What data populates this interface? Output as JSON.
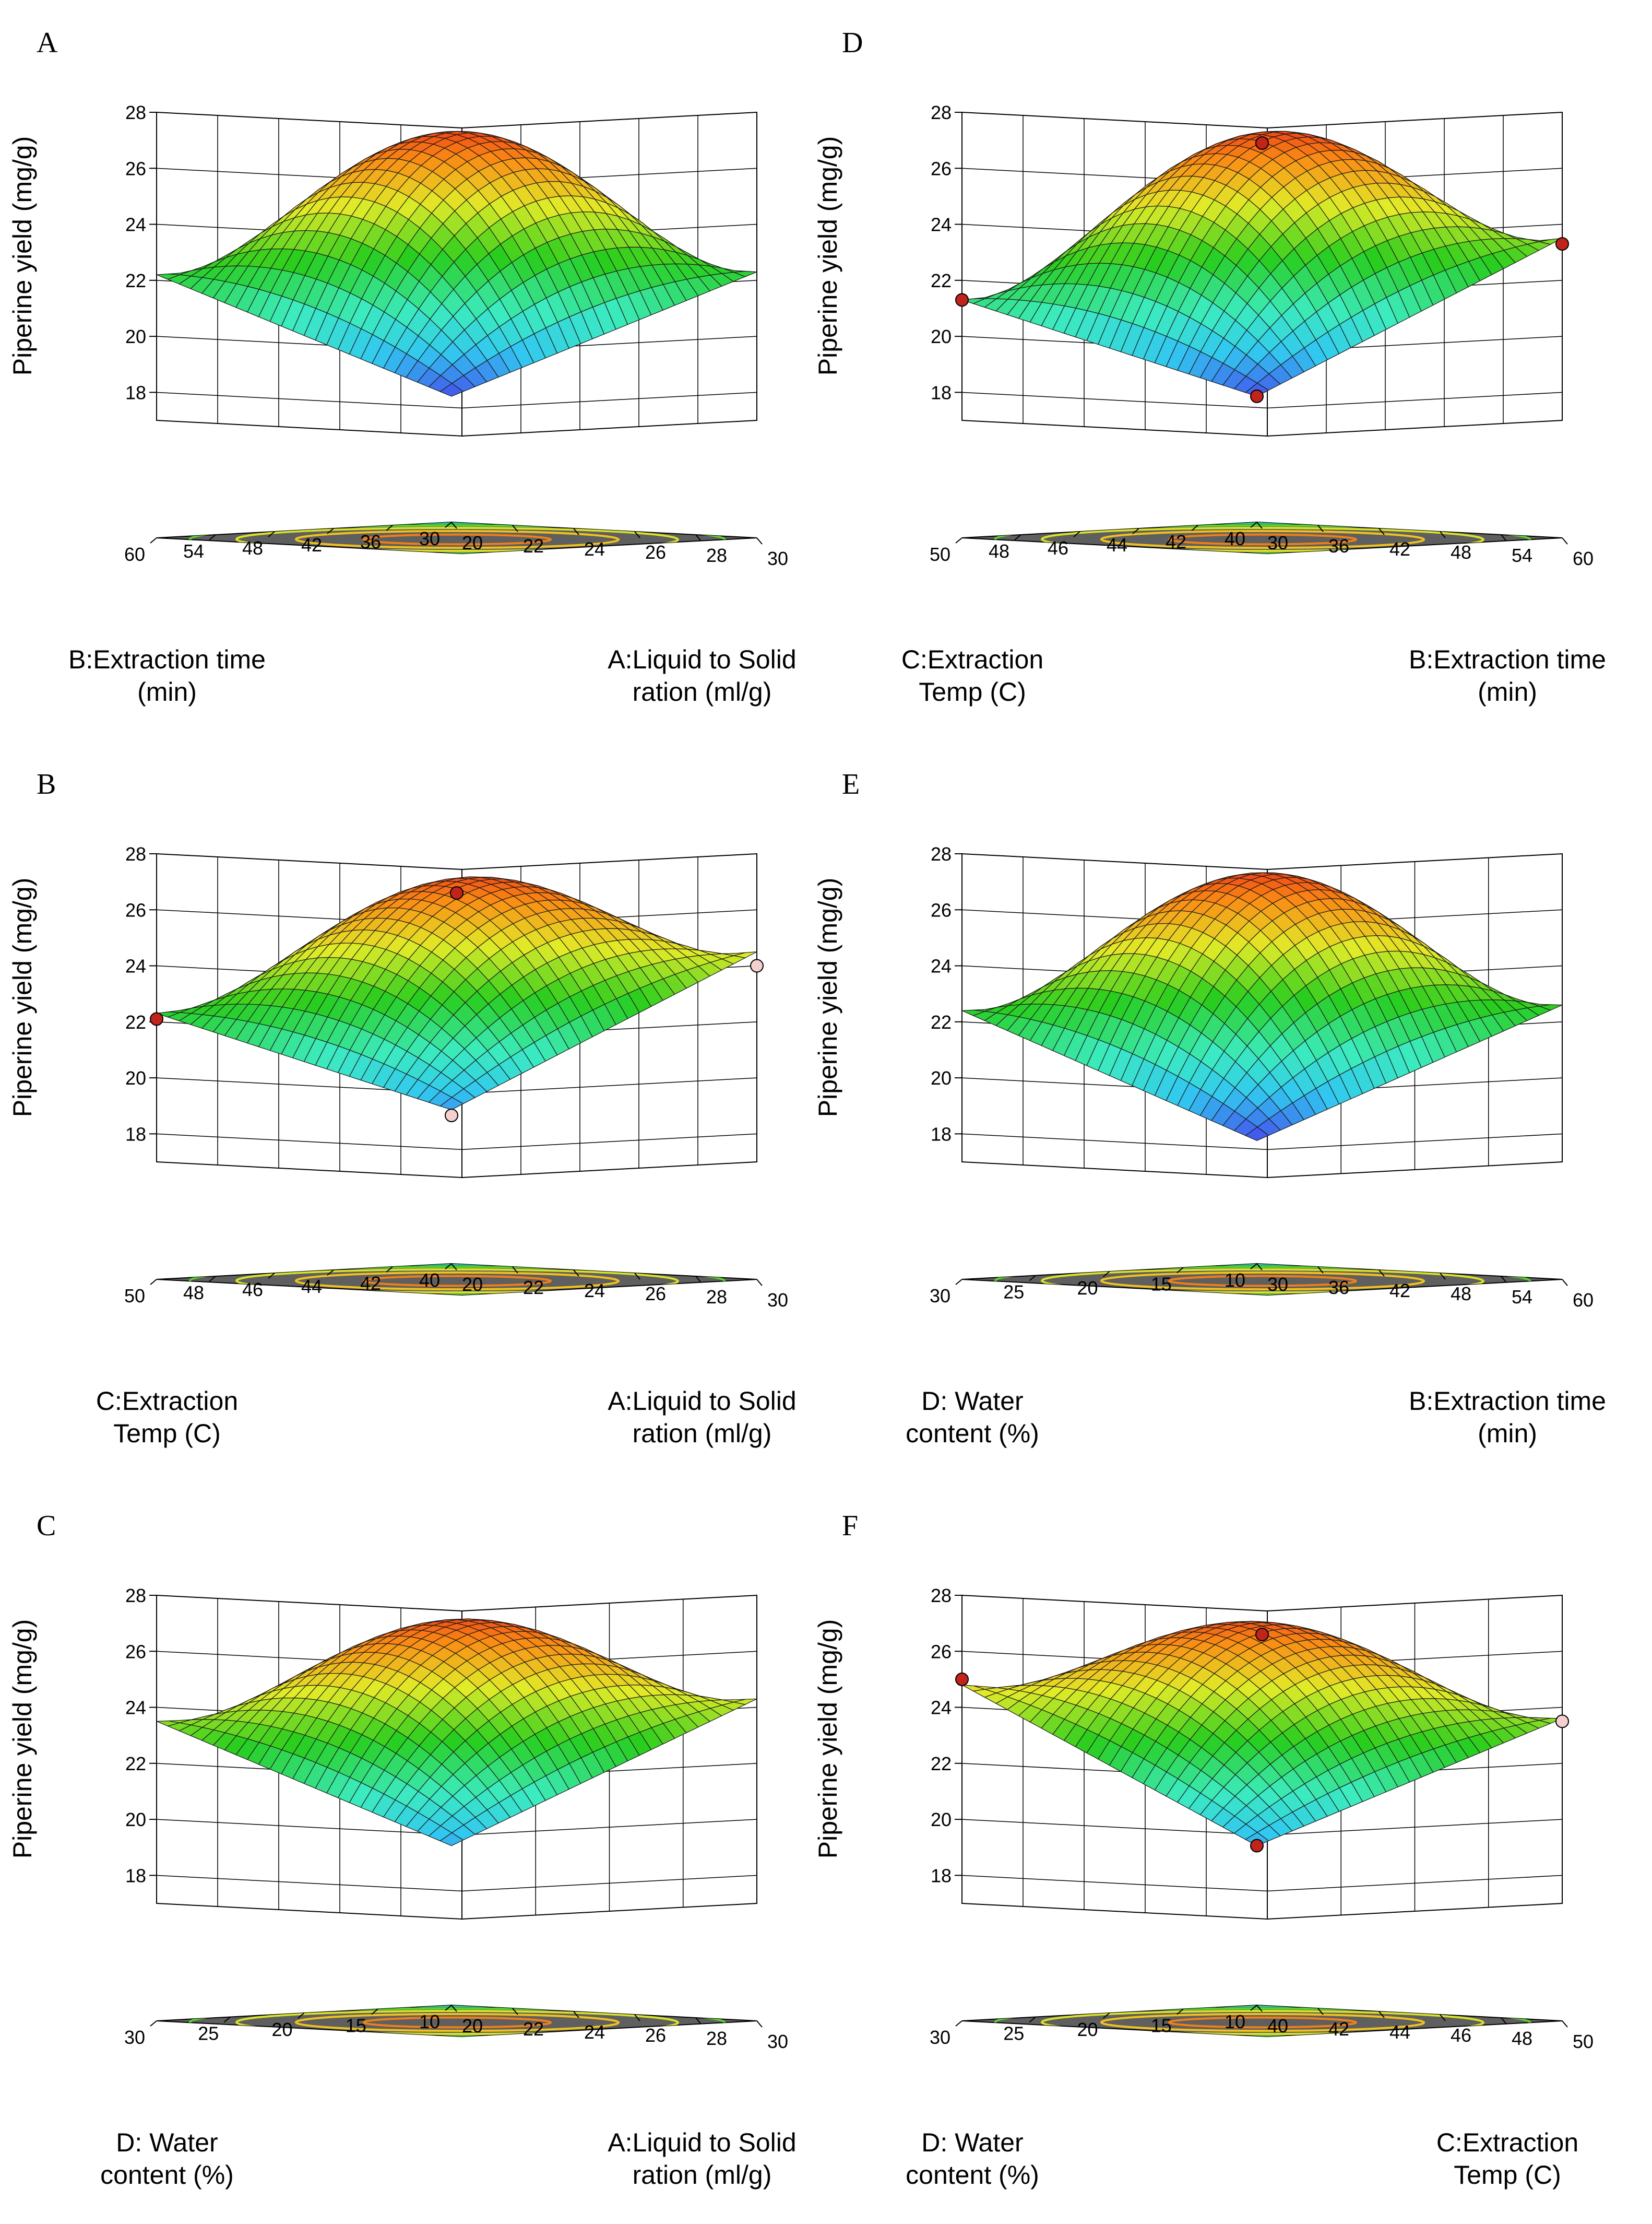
{
  "figure": {
    "zlabel": "Piperine yield (mg/g)",
    "zticks": [
      18,
      20,
      22,
      24,
      26,
      28
    ],
    "zlim": [
      17,
      28
    ]
  },
  "chart_data": [
    {
      "panel": "A",
      "type": "surface",
      "right_axis": {
        "label_lines": [
          "A:Liquid to Solid",
          "ration (ml/g)"
        ],
        "ticks": [
          20,
          22,
          24,
          26,
          28,
          30
        ],
        "range": [
          20,
          30
        ]
      },
      "left_axis": {
        "label_lines": [
          "B:Extraction time",
          "(min)"
        ],
        "ticks": [
          30,
          36,
          42,
          48,
          54,
          60
        ],
        "range": [
          30,
          60
        ]
      },
      "corner_z": {
        "front": 17.3,
        "right": 22.3,
        "left": 22.2,
        "back": 23.5
      },
      "peak_z": 27.2,
      "design_points": []
    },
    {
      "panel": "B",
      "type": "surface",
      "right_axis": {
        "label_lines": [
          "A:Liquid to Solid",
          "ration (ml/g)"
        ],
        "ticks": [
          20,
          22,
          24,
          26,
          28,
          30
        ],
        "range": [
          20,
          30
        ]
      },
      "left_axis": {
        "label_lines": [
          "C:Extraction",
          "Temp (C)"
        ],
        "ticks": [
          40,
          42,
          44,
          46,
          48,
          50
        ],
        "range": [
          40,
          50
        ]
      },
      "corner_z": {
        "front": 18.3,
        "right": 24.5,
        "left": 22.3,
        "back": 24.3
      },
      "peak_z": 27.0,
      "design_points": [
        {
          "x": 25,
          "y": 45,
          "z": 26.6,
          "color": "#c0241b"
        },
        {
          "x": 30,
          "y": 40,
          "z": 24.0,
          "color": "#f6cfcf"
        },
        {
          "x": 20,
          "y": 50,
          "z": 22.1,
          "color": "#c0241b"
        },
        {
          "x": 20,
          "y": 40,
          "z": 18.1,
          "color": "#f6cfcf"
        }
      ]
    },
    {
      "panel": "C",
      "type": "surface",
      "right_axis": {
        "label_lines": [
          "A:Liquid to Solid",
          "ration (ml/g)"
        ],
        "ticks": [
          20,
          22,
          24,
          26,
          28,
          30
        ],
        "range": [
          20,
          30
        ]
      },
      "left_axis": {
        "label_lines": [
          "D: Water",
          "content (%)"
        ],
        "ticks": [
          10,
          15,
          20,
          25,
          30
        ],
        "range": [
          10,
          30
        ]
      },
      "corner_z": {
        "front": 18.5,
        "right": 24.3,
        "left": 23.5,
        "back": 24.5
      },
      "peak_z": 27.0,
      "design_points": []
    },
    {
      "panel": "D",
      "type": "surface",
      "right_axis": {
        "label_lines": [
          "B:Extraction time",
          "(min)"
        ],
        "ticks": [
          30,
          36,
          42,
          48,
          54,
          60
        ],
        "range": [
          30,
          60
        ]
      },
      "left_axis": {
        "label_lines": [
          "C:Extraction",
          "Temp (C)"
        ],
        "ticks": [
          40,
          42,
          44,
          46,
          48,
          50
        ],
        "range": [
          40,
          50
        ]
      },
      "corner_z": {
        "front": 17.3,
        "right": 23.5,
        "left": 21.3,
        "back": 23.0
      },
      "peak_z": 27.2,
      "design_points": [
        {
          "x": 45,
          "y": 45,
          "z": 26.9,
          "color": "#c0241b"
        },
        {
          "x": 60,
          "y": 40,
          "z": 23.3,
          "color": "#c0241b"
        },
        {
          "x": 30,
          "y": 50,
          "z": 21.3,
          "color": "#c0241b"
        },
        {
          "x": 30,
          "y": 40,
          "z": 17.3,
          "color": "#c0241b"
        }
      ]
    },
    {
      "panel": "E",
      "type": "surface",
      "right_axis": {
        "label_lines": [
          "B:Extraction time",
          "(min)"
        ],
        "ticks": [
          30,
          36,
          42,
          48,
          54,
          60
        ],
        "range": [
          30,
          60
        ]
      },
      "left_axis": {
        "label_lines": [
          "D: Water",
          "content (%)"
        ],
        "ticks": [
          10,
          15,
          20,
          25,
          30
        ],
        "range": [
          10,
          30
        ]
      },
      "corner_z": {
        "front": 17.2,
        "right": 22.6,
        "left": 22.4,
        "back": 23.5
      },
      "peak_z": 27.2,
      "design_points": []
    },
    {
      "panel": "F",
      "type": "surface",
      "right_axis": {
        "label_lines": [
          "C:Extraction",
          "Temp (C)"
        ],
        "ticks": [
          40,
          42,
          44,
          46,
          48,
          50
        ],
        "range": [
          40,
          50
        ]
      },
      "left_axis": {
        "label_lines": [
          "D: Water",
          "content (%)"
        ],
        "ticks": [
          10,
          15,
          20,
          25,
          30
        ],
        "range": [
          10,
          30
        ]
      },
      "corner_z": {
        "front": 18.5,
        "right": 23.6,
        "left": 24.8,
        "back": 24.5
      },
      "peak_z": 26.9,
      "design_points": [
        {
          "x": 45,
          "y": 20,
          "z": 26.6,
          "color": "#c0241b"
        },
        {
          "x": 50,
          "y": 10,
          "z": 23.5,
          "color": "#f6cfcf"
        },
        {
          "x": 40,
          "y": 30,
          "z": 25.0,
          "color": "#c0241b"
        },
        {
          "x": 40,
          "y": 10,
          "z": 18.5,
          "color": "#c0241b"
        }
      ]
    }
  ]
}
